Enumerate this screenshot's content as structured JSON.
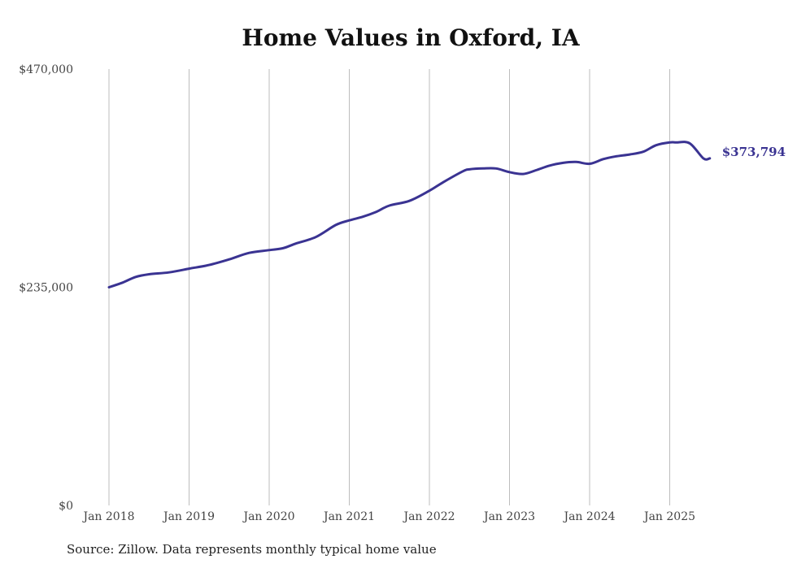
{
  "chart_data": {
    "type": "line",
    "title": "Home Values in Oxford, IA",
    "source": "Source: Zillow. Data represents monthly typical home value",
    "ylim": [
      0,
      470000
    ],
    "y_ticks": [
      {
        "value": 0,
        "label": "$0"
      },
      {
        "value": 235000,
        "label": "$235,000"
      },
      {
        "value": 470000,
        "label": "$470,000"
      }
    ],
    "x_ticks": [
      {
        "value": 2018.0,
        "label": "Jan 2018"
      },
      {
        "value": 2019.0,
        "label": "Jan 2019"
      },
      {
        "value": 2020.0,
        "label": "Jan 2020"
      },
      {
        "value": 2021.0,
        "label": "Jan 2021"
      },
      {
        "value": 2022.0,
        "label": "Jan 2022"
      },
      {
        "value": 2023.0,
        "label": "Jan 2023"
      },
      {
        "value": 2024.0,
        "label": "Jan 2024"
      },
      {
        "value": 2025.0,
        "label": "Jan 2025"
      }
    ],
    "grid": "vertical",
    "line_color": "#3a3392",
    "series": [
      {
        "end_label": "$373,794",
        "x": [
          2018.0,
          2018.17,
          2018.33,
          2018.5,
          2018.75,
          2019.0,
          2019.25,
          2019.5,
          2019.75,
          2020.0,
          2020.17,
          2020.33,
          2020.58,
          2020.83,
          2021.0,
          2021.17,
          2021.33,
          2021.5,
          2021.75,
          2022.0,
          2022.17,
          2022.42,
          2022.5,
          2022.67,
          2022.83,
          2023.0,
          2023.17,
          2023.33,
          2023.5,
          2023.67,
          2023.83,
          2024.0,
          2024.17,
          2024.33,
          2024.5,
          2024.67,
          2024.83,
          2025.0,
          2025.08,
          2025.25,
          2025.42,
          2025.5
        ],
        "values": [
          235000,
          240000,
          246000,
          249000,
          251000,
          255000,
          259000,
          265000,
          272000,
          275000,
          277000,
          282000,
          289000,
          302000,
          307000,
          311000,
          316000,
          323000,
          328000,
          339000,
          348000,
          360000,
          362000,
          363000,
          363000,
          359000,
          357000,
          361000,
          366000,
          369000,
          370000,
          368000,
          373000,
          376000,
          378000,
          381000,
          388000,
          391000,
          391000,
          390000,
          373794,
          373794
        ]
      }
    ]
  }
}
